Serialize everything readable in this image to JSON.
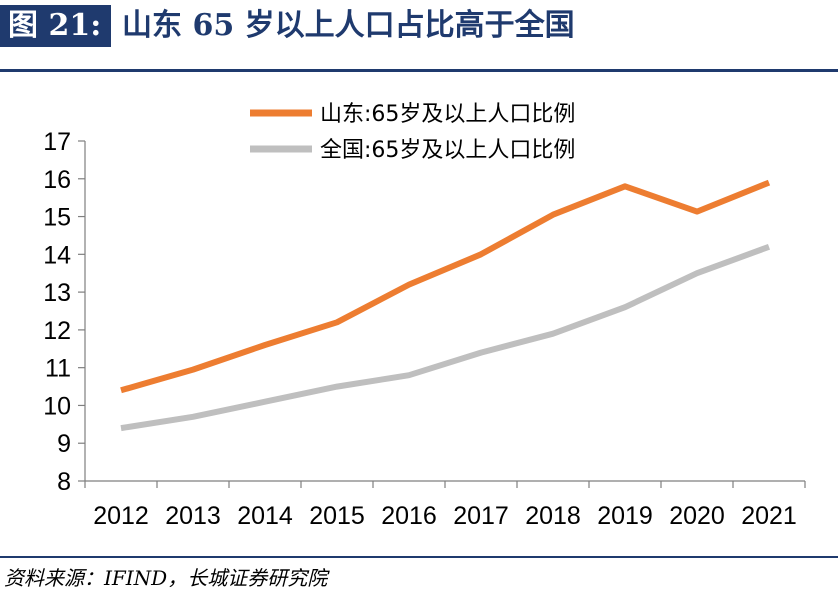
{
  "header": {
    "figure_label": "图 21:",
    "title": "山东 65 岁以上人口占比高于全国"
  },
  "footer": {
    "source": "资料来源：IFIND，长城证券研究院"
  },
  "chart_data": {
    "type": "line",
    "title": "",
    "xlabel": "",
    "ylabel": "",
    "categories": [
      "2012",
      "2013",
      "2014",
      "2015",
      "2016",
      "2017",
      "2018",
      "2019",
      "2020",
      "2021"
    ],
    "ylim": [
      8,
      17
    ],
    "yticks": [
      8,
      9,
      10,
      11,
      12,
      13,
      14,
      15,
      16,
      17
    ],
    "grid": false,
    "legend_position": "top-center",
    "series": [
      {
        "name": "山东:65岁及以上人口比例",
        "color": "#ed7d31",
        "values": [
          10.4,
          10.95,
          11.6,
          12.2,
          13.2,
          14.0,
          15.05,
          15.8,
          15.13,
          15.9
        ]
      },
      {
        "name": "全国:65岁及以上人口比例",
        "color": "#bfbfbf",
        "values": [
          9.4,
          9.7,
          10.1,
          10.5,
          10.8,
          11.4,
          11.9,
          12.6,
          13.5,
          14.2
        ]
      }
    ]
  }
}
